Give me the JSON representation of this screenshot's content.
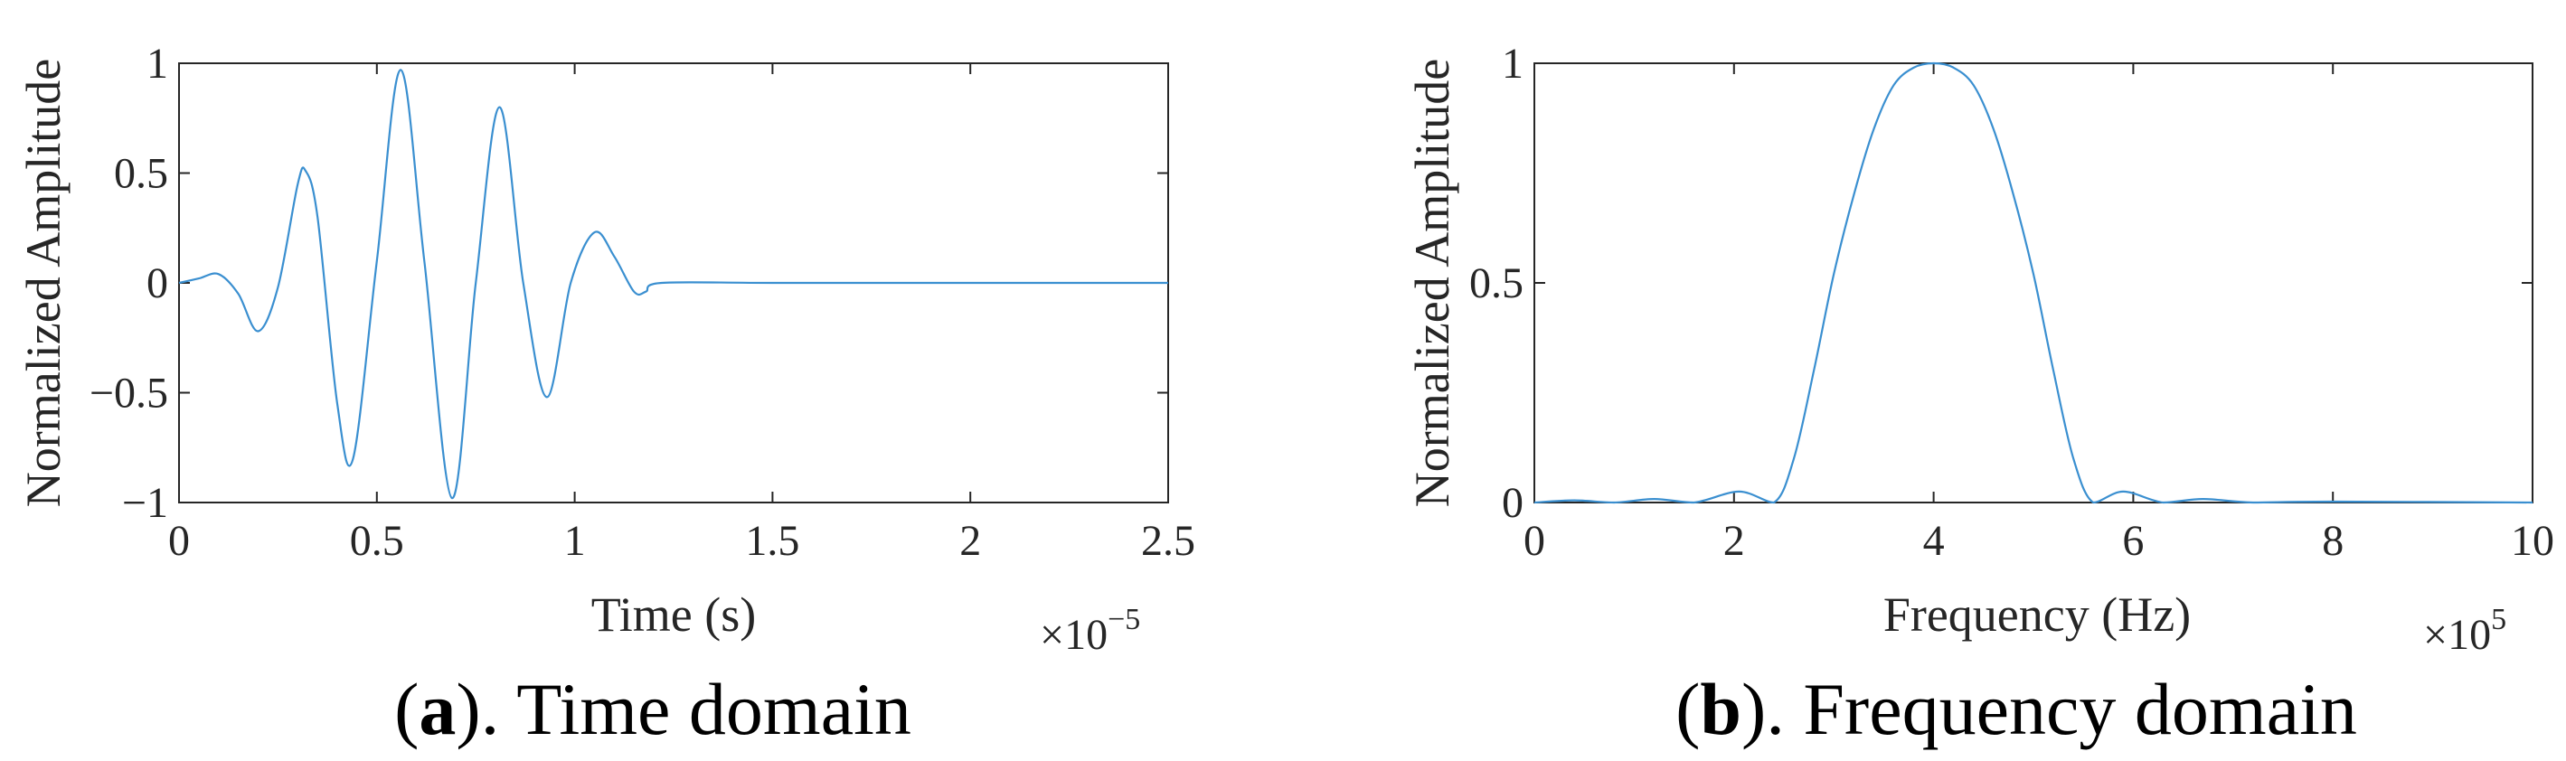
{
  "chart_data": [
    {
      "type": "line",
      "panel": "a",
      "ylabel": "Normalized Amplitude",
      "xlabel": "Time (s)",
      "x_multiplier_base": "×10",
      "x_multiplier_exp": "−5",
      "xlim": [
        0,
        2.5
      ],
      "ylim": [
        -1,
        1
      ],
      "xticks": [
        0,
        0.5,
        1,
        1.5,
        2,
        2.5
      ],
      "xtick_labels": [
        "0",
        "0.5",
        "1",
        "1.5",
        "2",
        "2.5"
      ],
      "yticks": [
        -1,
        -0.5,
        0,
        0.5,
        1
      ],
      "ytick_labels": [
        "−1",
        "−0.5",
        "0",
        "0.5",
        "1"
      ],
      "grid": false,
      "series": [
        {
          "color": "#3a8fd0",
          "x": [
            0,
            0.05,
            0.1,
            0.15,
            0.2,
            0.25,
            0.3,
            0.32,
            0.35,
            0.4,
            0.44,
            0.5,
            0.56,
            0.62,
            0.69,
            0.75,
            0.81,
            0.87,
            0.93,
            0.99,
            1.05,
            1.1,
            1.15,
            1.18,
            1.22,
            1.5,
            2.0,
            2.5
          ],
          "y": [
            0,
            0.02,
            0.04,
            -0.05,
            -0.22,
            -0.02,
            0.45,
            0.51,
            0.3,
            -0.55,
            -0.8,
            0.1,
            0.97,
            0.1,
            -0.98,
            0.0,
            0.8,
            0.0,
            -0.52,
            0.0,
            0.23,
            0.12,
            -0.04,
            -0.04,
            0.0,
            0.0,
            0.0,
            0.0
          ]
        }
      ],
      "caption_label": "a",
      "caption_text": "). Time domain"
    },
    {
      "type": "line",
      "panel": "b",
      "ylabel": "Normalized Amplitude",
      "xlabel": "Frequency (Hz)",
      "x_multiplier_base": "×10",
      "x_multiplier_exp": "5",
      "xlim": [
        0,
        10
      ],
      "ylim": [
        0,
        1
      ],
      "xticks": [
        0,
        2,
        4,
        6,
        8,
        10
      ],
      "xtick_labels": [
        "0",
        "2",
        "4",
        "6",
        "8",
        "10"
      ],
      "yticks": [
        0,
        0.5,
        1
      ],
      "ytick_labels": [
        "0",
        "0.5",
        "1"
      ],
      "grid": false,
      "series": [
        {
          "color": "#3a8fd0",
          "x": [
            0,
            0.4,
            0.8,
            1.2,
            1.6,
            2.05,
            2.4,
            2.6,
            2.8,
            3.0,
            3.2,
            3.4,
            3.6,
            3.8,
            4.0,
            4.2,
            4.4,
            4.6,
            4.8,
            5.0,
            5.2,
            5.4,
            5.6,
            5.9,
            6.3,
            6.7,
            7.2,
            8.0,
            10.0
          ],
          "y": [
            0.0,
            0.005,
            0.0,
            0.008,
            0.0,
            0.025,
            0.0,
            0.1,
            0.3,
            0.52,
            0.7,
            0.85,
            0.95,
            0.99,
            1.0,
            0.99,
            0.95,
            0.85,
            0.7,
            0.52,
            0.3,
            0.1,
            0.0,
            0.025,
            0.0,
            0.008,
            0.0,
            0.002,
            0.0
          ]
        }
      ],
      "caption_label": "b",
      "caption_text": "). Frequency domain"
    }
  ]
}
